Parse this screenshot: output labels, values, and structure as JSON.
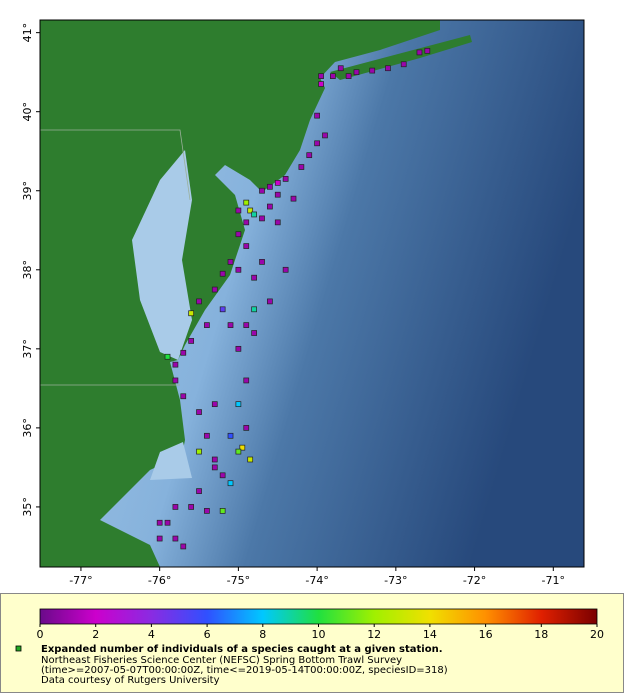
{
  "chart_data": {
    "type": "map",
    "xlim": [
      -77.52,
      -70.61
    ],
    "ylim": [
      34.24,
      41.16
    ],
    "xticks": [
      {
        "value": -77,
        "label": "-77°"
      },
      {
        "value": -76,
        "label": "-76°"
      },
      {
        "value": -75,
        "label": "-75°"
      },
      {
        "value": -74,
        "label": "-74°"
      },
      {
        "value": -73,
        "label": "-73°"
      },
      {
        "value": -72,
        "label": "-72°"
      },
      {
        "value": -71,
        "label": "-71°"
      }
    ],
    "yticks": [
      {
        "value": 35,
        "label": "35°"
      },
      {
        "value": 36,
        "label": "36°"
      },
      {
        "value": 37,
        "label": "37°"
      },
      {
        "value": 38,
        "label": "38°"
      },
      {
        "value": 39,
        "label": "39°"
      },
      {
        "value": 40,
        "label": "40°"
      },
      {
        "value": 41,
        "label": "41°"
      }
    ],
    "colorbar": {
      "lim": [
        0,
        20
      ],
      "ticks": [
        0,
        2,
        4,
        6,
        8,
        10,
        12,
        14,
        16,
        18,
        20
      ],
      "colors": [
        "#6a0a8a",
        "#cc00cc",
        "#8a2be2",
        "#3050ff",
        "#00c8ff",
        "#20e040",
        "#a0f000",
        "#f0e000",
        "#ff9000",
        "#e02000",
        "#7a0000"
      ]
    },
    "marker_color": "#22aa22",
    "legend": [
      "Expanded number of individuals of a species caught at a given station.",
      "Northeast Fisheries Science Center (NEFSC) Spring Bottom Trawl Survey",
      "(time>=2007-05-07T00:00:00Z, time<=2019-05-14T00:00:00Z, speciesID=318)",
      "Data courtesy of Rutgers University"
    ],
    "lon": [
      -73.95,
      -73.8,
      -73.6,
      -73.5,
      -73.3,
      -73.1,
      -72.9,
      -72.7,
      -72.6,
      -73.7,
      -73.95,
      -74.0,
      -73.9,
      -74.0,
      -74.1,
      -74.2,
      -74.4,
      -74.5,
      -74.6,
      -74.7,
      -74.5,
      -74.3,
      -74.6,
      -74.9,
      -74.85,
      -74.8,
      -75.0,
      -74.9,
      -74.7,
      -74.5,
      -75.0,
      -74.9,
      -75.1,
      -75.0,
      -74.7,
      -74.4,
      -74.8,
      -75.2,
      -75.3,
      -75.5,
      -75.6,
      -75.4,
      -75.1,
      -74.8,
      -74.9,
      -75.6,
      -75.7,
      -75.0,
      -74.8,
      -75.2,
      -74.6,
      -75.9,
      -75.8,
      -75.8,
      -75.7,
      -75.5,
      -75.3,
      -74.9,
      -75.0,
      -74.9,
      -75.1,
      -75.4,
      -75.5,
      -75.3,
      -74.95,
      -74.85,
      -75.0,
      -75.3,
      -75.1,
      -75.2,
      -75.5,
      -75.6,
      -75.4,
      -75.2,
      -75.8,
      -76.0,
      -75.8,
      -75.7,
      -75.9,
      -76.0
    ],
    "lat": [
      40.45,
      40.45,
      40.45,
      40.5,
      40.52,
      40.55,
      40.6,
      40.75,
      40.77,
      40.55,
      40.35,
      39.95,
      39.7,
      39.6,
      39.45,
      39.3,
      39.15,
      39.1,
      39.05,
      39.0,
      38.95,
      38.9,
      38.8,
      38.85,
      38.75,
      38.7,
      38.75,
      38.6,
      38.65,
      38.6,
      38.45,
      38.3,
      38.1,
      38.0,
      38.1,
      38.0,
      37.9,
      37.95,
      37.75,
      37.6,
      37.45,
      37.3,
      37.3,
      37.5,
      37.3,
      37.1,
      36.95,
      37.0,
      37.2,
      37.5,
      37.6,
      36.9,
      36.8,
      36.6,
      36.4,
      36.2,
      36.3,
      36.6,
      36.3,
      36.0,
      35.9,
      35.9,
      35.7,
      35.6,
      35.75,
      35.6,
      35.7,
      35.5,
      35.3,
      35.4,
      35.2,
      35.0,
      34.95,
      34.95,
      35.0,
      34.8,
      34.6,
      34.5,
      34.8,
      34.6
    ],
    "values": [
      1,
      1,
      1,
      1,
      1,
      1,
      1,
      1,
      1,
      1,
      2,
      1,
      1,
      1,
      1,
      1,
      1,
      2,
      1,
      1,
      1,
      1,
      1,
      12,
      13,
      9,
      1,
      1,
      1,
      1,
      1,
      1,
      1,
      1,
      1,
      1,
      1,
      1,
      1,
      1,
      13,
      1,
      1,
      9,
      1,
      1,
      1,
      1,
      1,
      5,
      1,
      10,
      1,
      1,
      1,
      1,
      1,
      1,
      8,
      1,
      6,
      1,
      12,
      1,
      14,
      13,
      11,
      1,
      8,
      1,
      1,
      1,
      1,
      11,
      1,
      1,
      1,
      1,
      1,
      1
    ]
  }
}
